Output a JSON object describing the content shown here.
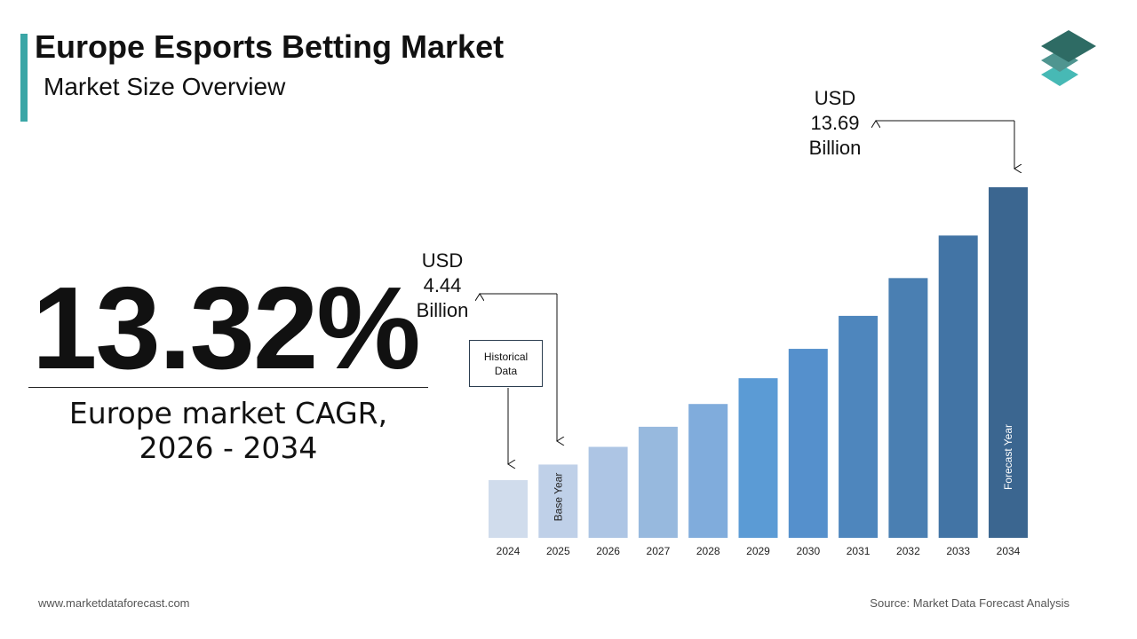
{
  "header": {
    "title": "Europe Esports Betting Market",
    "subtitle": "Market Size Overview"
  },
  "kpi": {
    "value": "13.32%",
    "label_line1": "Europe market CAGR,",
    "label_line2": "2026 - 2034"
  },
  "callouts": {
    "start": {
      "l1": "USD",
      "l2": "4.44",
      "l3": "Billion"
    },
    "end": {
      "l1": "USD",
      "l2": "13.69",
      "l3": "Billion"
    },
    "historical": {
      "l1": "Historical",
      "l2": "Data"
    }
  },
  "footer": {
    "website": "www.marketdataforecast.com",
    "source": "Source: Market Data Forecast Analysis"
  },
  "logo": {
    "icon": "stacked-layers-icon",
    "colors": [
      "#2e6b64",
      "#4f9590",
      "#47b9b5"
    ]
  },
  "chart_data": {
    "type": "bar",
    "categories": [
      "2024",
      "2025",
      "2026",
      "2027",
      "2028",
      "2029",
      "2030",
      "2031",
      "2032",
      "2033",
      "2034"
    ],
    "values": [
      3.92,
      4.44,
      5.03,
      5.7,
      6.46,
      7.32,
      8.3,
      9.4,
      10.66,
      12.08,
      13.69
    ],
    "unit": "USD Billion",
    "bar_labels": {
      "2025": "Base Year",
      "2034": "Forecast Year"
    },
    "colors": [
      "#d0dcec",
      "#bfd0e8",
      "#adc5e4",
      "#97b9de",
      "#80acdc",
      "#5b9bd5",
      "#5590cc",
      "#4e86bd",
      "#4a7fb2",
      "#4274a5",
      "#3b6690"
    ],
    "grid": false,
    "legend": "none"
  }
}
